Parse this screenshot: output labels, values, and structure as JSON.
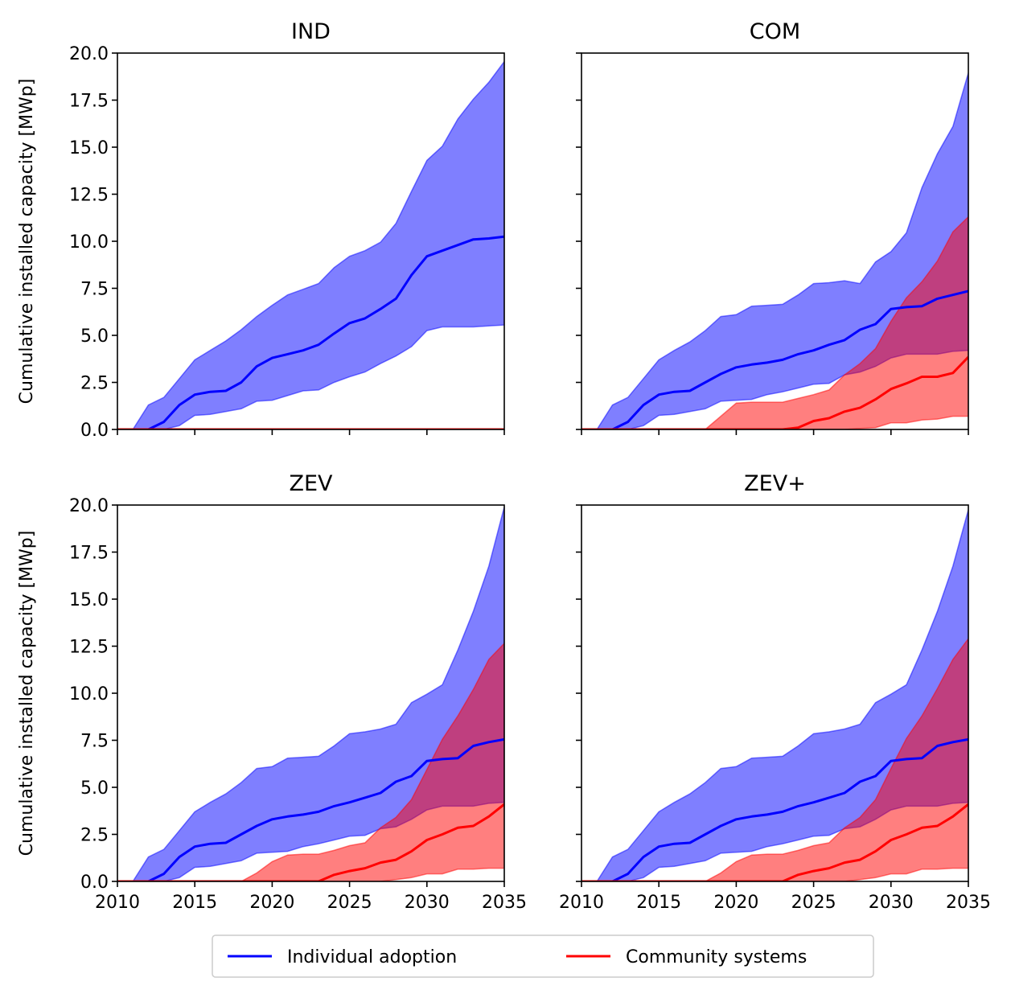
{
  "chart_data": {
    "type": "area",
    "ylabel": "Cumulative installed capacity [MWp]",
    "xlim": [
      2010,
      2035
    ],
    "ylim": [
      0,
      20
    ],
    "x_ticks": [
      "2010",
      "2015",
      "2020",
      "2025",
      "2030",
      "2035"
    ],
    "y_ticks": [
      "0.0",
      "2.5",
      "5.0",
      "7.5",
      "10.0",
      "12.5",
      "15.0",
      "17.5",
      "20.0"
    ],
    "grid": false,
    "legend": {
      "placement": "bottom-center",
      "entries": [
        {
          "label": "Individual adoption",
          "color": "#0000ff"
        },
        {
          "label": "Community systems",
          "color": "#ff0000"
        }
      ]
    },
    "x": [
      2010,
      2011,
      2012,
      2013,
      2014,
      2015,
      2016,
      2017,
      2018,
      2019,
      2020,
      2021,
      2022,
      2023,
      2024,
      2025,
      2026,
      2027,
      2028,
      2029,
      2030,
      2031,
      2032,
      2033,
      2034,
      2035
    ],
    "panels": [
      {
        "title": "IND",
        "series": [
          {
            "name": "Individual adoption",
            "color": "#0000ff",
            "median": [
              0,
              0,
              0,
              0.4,
              1.3,
              1.85,
              2.0,
              2.05,
              2.5,
              3.35,
              3.8,
              4.0,
              4.2,
              4.5,
              5.1,
              5.65,
              5.9,
              6.4,
              6.95,
              8.2,
              9.2,
              9.5,
              9.8,
              10.1,
              10.15,
              10.25
            ],
            "lower": [
              0,
              0,
              0,
              0,
              0.2,
              0.75,
              0.8,
              0.95,
              1.1,
              1.5,
              1.55,
              1.8,
              2.05,
              2.1,
              2.5,
              2.8,
              3.05,
              3.5,
              3.9,
              4.4,
              5.25,
              5.45,
              5.45,
              5.45,
              5.5,
              5.55
            ],
            "upper": [
              0,
              0,
              1.3,
              1.7,
              2.7,
              3.7,
              4.2,
              4.7,
              5.3,
              6.0,
              6.6,
              7.15,
              7.45,
              7.75,
              8.6,
              9.2,
              9.5,
              9.95,
              10.95,
              12.65,
              14.3,
              15.05,
              16.5,
              17.55,
              18.45,
              19.55
            ]
          },
          {
            "name": "Community systems",
            "color": "#ff0000",
            "median": [
              0,
              0,
              0,
              0,
              0,
              0,
              0,
              0,
              0,
              0,
              0,
              0,
              0,
              0,
              0,
              0,
              0,
              0,
              0,
              0,
              0,
              0,
              0,
              0,
              0,
              0
            ],
            "lower": [
              0,
              0,
              0,
              0,
              0,
              0,
              0,
              0,
              0,
              0,
              0,
              0,
              0,
              0,
              0,
              0,
              0,
              0,
              0,
              0,
              0,
              0,
              0,
              0,
              0,
              0
            ],
            "upper": [
              0,
              0,
              0,
              0,
              0,
              0,
              0,
              0,
              0,
              0,
              0,
              0,
              0,
              0,
              0,
              0,
              0,
              0,
              0,
              0,
              0,
              0,
              0,
              0,
              0,
              0
            ]
          }
        ]
      },
      {
        "title": "COM",
        "series": [
          {
            "name": "Individual adoption",
            "color": "#0000ff",
            "median": [
              0,
              0,
              0,
              0.4,
              1.3,
              1.85,
              2.0,
              2.05,
              2.5,
              2.95,
              3.3,
              3.45,
              3.55,
              3.7,
              4.0,
              4.2,
              4.5,
              4.75,
              5.3,
              5.6,
              6.4,
              6.5,
              6.55,
              6.95,
              7.15,
              7.35
            ],
            "lower": [
              0,
              0,
              0,
              0,
              0.2,
              0.75,
              0.8,
              0.95,
              1.1,
              1.5,
              1.55,
              1.6,
              1.85,
              2.0,
              2.2,
              2.4,
              2.45,
              2.9,
              3.05,
              3.35,
              3.8,
              4.0,
              4.0,
              4.0,
              4.15,
              4.2
            ],
            "upper": [
              0,
              0,
              1.3,
              1.7,
              2.7,
              3.7,
              4.2,
              4.65,
              5.25,
              6.0,
              6.1,
              6.55,
              6.6,
              6.65,
              7.15,
              7.75,
              7.8,
              7.9,
              7.75,
              8.9,
              9.45,
              10.45,
              12.85,
              14.65,
              16.1,
              18.95
            ]
          },
          {
            "name": "Community systems",
            "color": "#ff0000",
            "median": [
              0,
              0,
              0,
              0,
              0,
              0,
              0,
              0,
              0,
              0,
              0,
              0,
              0,
              0,
              0.1,
              0.45,
              0.6,
              0.95,
              1.15,
              1.6,
              2.15,
              2.45,
              2.8,
              2.8,
              3.0,
              3.85
            ],
            "lower": [
              0,
              0,
              0,
              0,
              0,
              0,
              0,
              0,
              0,
              0,
              0,
              0,
              0,
              0,
              0,
              0,
              0,
              0,
              0.05,
              0.1,
              0.35,
              0.35,
              0.5,
              0.55,
              0.7,
              0.7
            ],
            "upper": [
              0,
              0,
              0,
              0,
              0,
              0,
              0,
              0,
              0,
              0.7,
              1.4,
              1.45,
              1.45,
              1.45,
              1.65,
              1.85,
              2.1,
              2.9,
              3.5,
              4.3,
              5.75,
              7.0,
              7.85,
              8.95,
              10.5,
              11.3
            ]
          }
        ]
      },
      {
        "title": "ZEV",
        "series": [
          {
            "name": "Individual adoption",
            "color": "#0000ff",
            "median": [
              0,
              0,
              0,
              0.4,
              1.3,
              1.85,
              2.0,
              2.05,
              2.5,
              2.95,
              3.3,
              3.45,
              3.55,
              3.7,
              4.0,
              4.2,
              4.45,
              4.7,
              5.3,
              5.6,
              6.4,
              6.5,
              6.55,
              7.2,
              7.4,
              7.55
            ],
            "lower": [
              0,
              0,
              0,
              0,
              0.2,
              0.75,
              0.8,
              0.95,
              1.1,
              1.5,
              1.55,
              1.6,
              1.85,
              2.0,
              2.2,
              2.4,
              2.45,
              2.8,
              2.9,
              3.3,
              3.8,
              4.0,
              4.0,
              4.0,
              4.15,
              4.2
            ],
            "upper": [
              0,
              0,
              1.3,
              1.7,
              2.7,
              3.7,
              4.2,
              4.65,
              5.25,
              6.0,
              6.1,
              6.55,
              6.6,
              6.65,
              7.2,
              7.85,
              7.95,
              8.1,
              8.35,
              9.5,
              9.95,
              10.45,
              12.3,
              14.35,
              16.75,
              19.9
            ]
          },
          {
            "name": "Community systems",
            "color": "#ff0000",
            "median": [
              0,
              0,
              0,
              0,
              0,
              0,
              0,
              0,
              0,
              0,
              0,
              0,
              0,
              0,
              0.35,
              0.55,
              0.7,
              1.0,
              1.15,
              1.6,
              2.2,
              2.5,
              2.85,
              2.95,
              3.45,
              4.1
            ],
            "lower": [
              0,
              0,
              0,
              0,
              0,
              0,
              0,
              0,
              0,
              0,
              0,
              0,
              0,
              0,
              0,
              0,
              0,
              0,
              0.1,
              0.2,
              0.4,
              0.4,
              0.65,
              0.65,
              0.7,
              0.7
            ],
            "upper": [
              0,
              0,
              0,
              0,
              0,
              0,
              0,
              0,
              0,
              0.45,
              1.05,
              1.4,
              1.45,
              1.45,
              1.65,
              1.9,
              2.05,
              2.85,
              3.4,
              4.35,
              5.95,
              7.55,
              8.8,
              10.2,
              11.8,
              12.65
            ]
          }
        ]
      },
      {
        "title": "ZEV+",
        "series": [
          {
            "name": "Individual adoption",
            "color": "#0000ff",
            "median": [
              0,
              0,
              0,
              0.4,
              1.3,
              1.85,
              2.0,
              2.05,
              2.5,
              2.95,
              3.3,
              3.45,
              3.55,
              3.7,
              4.0,
              4.2,
              4.45,
              4.7,
              5.3,
              5.6,
              6.4,
              6.5,
              6.55,
              7.2,
              7.4,
              7.55
            ],
            "lower": [
              0,
              0,
              0,
              0,
              0.2,
              0.75,
              0.8,
              0.95,
              1.1,
              1.5,
              1.55,
              1.6,
              1.85,
              2.0,
              2.2,
              2.4,
              2.45,
              2.8,
              2.9,
              3.3,
              3.8,
              4.0,
              4.0,
              4.0,
              4.15,
              4.2
            ],
            "upper": [
              0,
              0,
              1.3,
              1.7,
              2.7,
              3.7,
              4.2,
              4.65,
              5.25,
              6.0,
              6.1,
              6.55,
              6.6,
              6.65,
              7.2,
              7.85,
              7.95,
              8.1,
              8.35,
              9.5,
              9.95,
              10.45,
              12.3,
              14.35,
              16.75,
              19.75
            ]
          },
          {
            "name": "Community systems",
            "color": "#ff0000",
            "median": [
              0,
              0,
              0,
              0,
              0,
              0,
              0,
              0,
              0,
              0,
              0,
              0,
              0,
              0,
              0.35,
              0.55,
              0.7,
              1.0,
              1.15,
              1.6,
              2.2,
              2.5,
              2.85,
              2.95,
              3.45,
              4.1
            ],
            "lower": [
              0,
              0,
              0,
              0,
              0,
              0,
              0,
              0,
              0,
              0,
              0,
              0,
              0,
              0,
              0,
              0,
              0,
              0,
              0.1,
              0.2,
              0.4,
              0.4,
              0.65,
              0.65,
              0.7,
              0.7
            ],
            "upper": [
              0,
              0,
              0,
              0,
              0,
              0,
              0,
              0,
              0,
              0.45,
              1.05,
              1.4,
              1.45,
              1.45,
              1.65,
              1.9,
              2.05,
              2.85,
              3.4,
              4.35,
              6.0,
              7.6,
              8.8,
              10.25,
              11.8,
              12.9
            ]
          }
        ]
      }
    ]
  }
}
